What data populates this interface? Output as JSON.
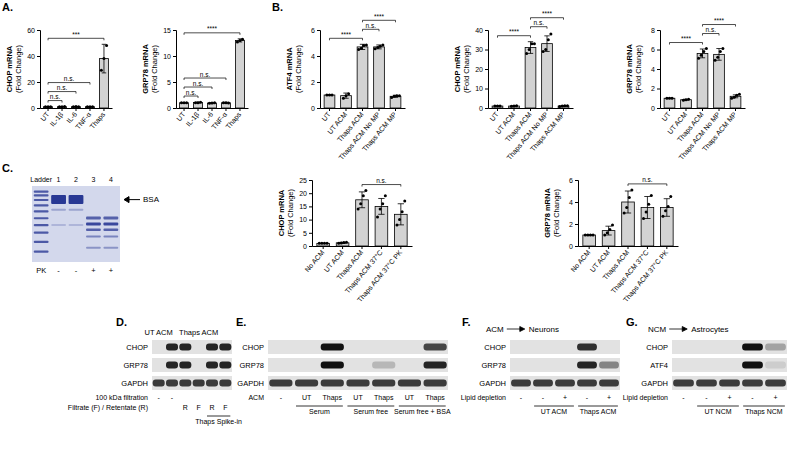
{
  "panel_labels": [
    "A.",
    "B.",
    "C.",
    "D.",
    "E.",
    "F.",
    "G."
  ],
  "chart_data": [
    {
      "type": "bar",
      "ylabel": "CHOP mRNA",
      "ylabel_unit": "(Fold Change)",
      "categories": [
        "UT",
        "IL-1β",
        "IL-6",
        "TNF-α",
        "Thaps"
      ],
      "values": [
        1,
        1,
        1,
        1,
        38
      ],
      "errors": [
        0.1,
        0.1,
        0.1,
        0.1,
        11
      ],
      "points": [
        [
          1,
          1,
          1
        ],
        [
          0.9,
          1,
          1.1
        ],
        [
          1,
          1.1,
          0.9
        ],
        [
          1,
          0.9,
          1
        ],
        [
          29,
          38,
          48
        ]
      ],
      "color": "#d3d3d3",
      "ylim": [
        0,
        60
      ],
      "yticks": [
        0,
        20,
        40,
        60
      ],
      "comparisons": [
        {
          "from": 0,
          "to": 1,
          "label": "n.s."
        },
        {
          "from": 0,
          "to": 2,
          "label": "n.s."
        },
        {
          "from": 0,
          "to": 3,
          "label": "n.s."
        },
        {
          "from": 0,
          "to": 4,
          "label": "***"
        }
      ]
    },
    {
      "type": "bar",
      "ylabel": "GRP78 mRNA",
      "ylabel_unit": "(Fold Change)",
      "categories": [
        "UT",
        "IL-1β",
        "IL-6",
        "TNF-α",
        "Thaps"
      ],
      "values": [
        1,
        1.05,
        0.95,
        1,
        13
      ],
      "errors": [
        0.05,
        0.1,
        0.1,
        0.1,
        0.3
      ],
      "points": [
        [
          1,
          1,
          1
        ],
        [
          1,
          1,
          1.1
        ],
        [
          0.9,
          0.95,
          1
        ],
        [
          1,
          1,
          0.95
        ],
        [
          12.7,
          13,
          13.2
        ]
      ],
      "color": "#d3d3d3",
      "ylim": [
        0,
        15
      ],
      "yticks": [
        0,
        5,
        10,
        15
      ],
      "comparisons": [
        {
          "from": 0,
          "to": 1,
          "label": "n.s."
        },
        {
          "from": 0,
          "to": 2,
          "label": "n.s."
        },
        {
          "from": 0,
          "to": 3,
          "label": "n.s."
        },
        {
          "from": 0,
          "to": 4,
          "label": "****"
        }
      ]
    },
    {
      "type": "bar",
      "ylabel": "ATF4 mRNA",
      "ylabel_unit": "(Fold Change)",
      "categories": [
        "UT",
        "UT ACM",
        "Thaps ACM",
        "Thaps ACM No MP",
        "Thaps ACM MP"
      ],
      "values": [
        1,
        0.95,
        4.7,
        4.7,
        0.9
      ],
      "errors": [
        0.02,
        0.2,
        0.2,
        0.15,
        0.08
      ],
      "points": [
        [
          1,
          1,
          1
        ],
        [
          0.75,
          0.95,
          1.1
        ],
        [
          4.5,
          4.6,
          4.8,
          4.85
        ],
        [
          4.55,
          4.65,
          4.75,
          4.85
        ],
        [
          0.8,
          0.9,
          0.95,
          0.95
        ]
      ],
      "color": "#d3d3d3",
      "ylim": [
        0,
        6
      ],
      "yticks": [
        0,
        2,
        4,
        6
      ],
      "comparisons": [
        {
          "from": 0,
          "to": 2,
          "label": "****"
        },
        {
          "from": 2,
          "to": 3,
          "label": "n.s."
        },
        {
          "from": 2,
          "to": 4,
          "label": "****"
        }
      ]
    },
    {
      "type": "bar",
      "ylabel": "CHOP mRNA",
      "ylabel_unit": "(Fold Change)",
      "categories": [
        "UT",
        "UT ACM",
        "Thaps ACM",
        "Thaps ACM No MP",
        "Thaps ACM MP"
      ],
      "values": [
        1,
        1,
        31,
        33,
        1
      ],
      "errors": [
        0.05,
        0.1,
        3,
        4,
        0.2
      ],
      "points": [
        [
          1,
          1,
          1
        ],
        [
          0.9,
          1,
          1.1
        ],
        [
          28,
          30,
          33,
          33
        ],
        [
          29,
          30,
          35,
          38
        ],
        [
          0.8,
          1,
          1.1,
          1.1
        ]
      ],
      "color": "#d3d3d3",
      "ylim": [
        0,
        40
      ],
      "yticks": [
        0,
        10,
        20,
        30,
        40
      ],
      "comparisons": [
        {
          "from": 0,
          "to": 2,
          "label": "****"
        },
        {
          "from": 2,
          "to": 3,
          "label": "n.s."
        },
        {
          "from": 2,
          "to": 4,
          "label": "****"
        }
      ]
    },
    {
      "type": "bar",
      "ylabel": "GRP78 mRNA",
      "ylabel_unit": "(Fold Change)",
      "categories": [
        "UT",
        "UT ACM",
        "Thaps ACM",
        "Thaps ACM No MP",
        "Thaps ACM MP"
      ],
      "values": [
        1,
        0.85,
        5.6,
        5.5,
        1.2
      ],
      "errors": [
        0.02,
        0.05,
        0.45,
        0.6,
        0.15
      ],
      "points": [
        [
          1,
          1,
          1
        ],
        [
          0.8,
          0.85,
          0.9
        ],
        [
          5.1,
          5.4,
          5.8,
          6.1
        ],
        [
          4.9,
          5.2,
          5.8,
          6.1
        ],
        [
          1,
          1.1,
          1.3,
          1.4
        ]
      ],
      "color": "#d3d3d3",
      "ylim": [
        0,
        8
      ],
      "yticks": [
        0,
        2,
        4,
        6,
        8
      ],
      "comparisons": [
        {
          "from": 0,
          "to": 2,
          "label": "****"
        },
        {
          "from": 2,
          "to": 3,
          "label": "n.s."
        },
        {
          "from": 2,
          "to": 4,
          "label": "****"
        }
      ]
    },
    {
      "type": "bar",
      "ylabel": "CHOP mRNA",
      "ylabel_unit": "(Fold Change)",
      "categories": [
        "No ACM",
        "UT ACM",
        "Thaps ACM",
        "Thaps ACM 37°C",
        "Thaps ACM 37°C PK"
      ],
      "values": [
        1,
        1.2,
        17.5,
        15,
        12
      ],
      "errors": [
        0.01,
        0.2,
        3,
        3,
        4
      ],
      "points": [
        [
          1,
          1,
          1,
          1
        ],
        [
          1,
          1.1,
          1.3,
          1.4
        ],
        [
          14,
          16,
          19,
          21
        ],
        [
          11,
          14,
          16,
          19
        ],
        [
          8,
          10,
          13,
          17
        ]
      ],
      "color": "#d3d3d3",
      "ylim": [
        0,
        25
      ],
      "yticks": [
        0,
        5,
        10,
        15,
        20,
        25
      ],
      "comparisons": [
        {
          "from": 2,
          "to": 4,
          "label": "n.s."
        }
      ]
    },
    {
      "type": "bar",
      "ylabel": "GRP78 mRNA",
      "ylabel_unit": "(Fold Change)",
      "categories": [
        "No ACM",
        "UT ACM",
        "Thaps ACM",
        "Thaps ACM 37°C",
        "Thaps ACM 37°C PK"
      ],
      "values": [
        1,
        1.4,
        4,
        3.5,
        3.5
      ],
      "errors": [
        0.01,
        0.4,
        1,
        1,
        0.8
      ],
      "points": [
        [
          1,
          1,
          1,
          1
        ],
        [
          1,
          1.2,
          1.5,
          1.9
        ],
        [
          3,
          3.5,
          4.4,
          5.1
        ],
        [
          2.5,
          3.1,
          3.8,
          4.6
        ],
        [
          2.7,
          3.2,
          3.6,
          4.5
        ]
      ],
      "color": "#d3d3d3",
      "ylim": [
        0,
        6
      ],
      "yticks": [
        0,
        2,
        4,
        6
      ],
      "comparisons": [
        {
          "from": 2,
          "to": 4,
          "label": "n.s."
        }
      ]
    }
  ],
  "gel": {
    "lane_labels": [
      "Ladder",
      "1",
      "2",
      "3",
      "4"
    ],
    "row": [
      "PK",
      "-",
      "-",
      "+",
      "+"
    ],
    "arrow_label": "BSA"
  },
  "blots": [
    {
      "headers": [
        {
          "label": "UT ACM",
          "from": 0,
          "to": 0
        },
        {
          "label": "Thaps ACM",
          "from": 1,
          "to": 5
        }
      ],
      "rows": [
        {
          "name": "CHOP",
          "bands": [
            0,
            0.9,
            0.9,
            0,
            0.9,
            0.9
          ]
        },
        {
          "name": "GRP78",
          "bands": [
            0,
            0.9,
            0.9,
            0,
            0.9,
            0.9
          ]
        },
        {
          "name": "GAPDH",
          "bands": [
            0.8,
            0.8,
            0.8,
            0.8,
            0.8,
            0.8
          ]
        }
      ],
      "lane_rows": [
        {
          "label": "100 kDa filtration",
          "lanes": [
            "-",
            "-",
            null,
            null,
            null,
            null
          ]
        },
        {
          "label": "Filtrate (F) / Retentate (R)",
          "lanes": [
            null,
            null,
            "R",
            "F",
            "R",
            "F"
          ]
        }
      ],
      "groups": [
        {
          "label": "Thaps Spike-in",
          "from": 4,
          "to": 5
        }
      ]
    },
    {
      "rows": [
        {
          "name": "CHOP",
          "bands": [
            0,
            0,
            1,
            0,
            0,
            0,
            0.75
          ]
        },
        {
          "name": "GRP78",
          "bands": [
            0,
            0,
            1,
            0,
            0.2,
            0,
            0.9
          ]
        },
        {
          "name": "GAPDH",
          "bands": [
            0.8,
            0.8,
            0.8,
            0.8,
            0.8,
            0.8,
            0.8
          ]
        }
      ],
      "lane_rows": [
        {
          "label": "ACM",
          "lanes": [
            "-",
            "UT",
            "Thaps",
            "UT",
            "Thaps",
            "UT",
            "Thaps"
          ]
        }
      ],
      "groups": [
        {
          "label": "Serum",
          "from": 1,
          "to": 2
        },
        {
          "label": "Serum free",
          "from": 3,
          "to": 4
        },
        {
          "label": "Serum free + BSA",
          "from": 5,
          "to": 6
        }
      ]
    },
    {
      "title": {
        "from": "ACM",
        "to": "Neurons"
      },
      "rows": [
        {
          "name": "CHOP",
          "bands": [
            0,
            0,
            0,
            0.85,
            0
          ]
        },
        {
          "name": "GRP78",
          "bands": [
            0,
            0,
            0,
            0.9,
            0.45
          ]
        },
        {
          "name": "GAPDH",
          "bands": [
            0.8,
            0.8,
            0.8,
            0.8,
            0.8
          ]
        }
      ],
      "lane_rows": [
        {
          "label": "Lipid depletion",
          "lanes": [
            "-",
            "-",
            "+",
            "-",
            "+"
          ]
        }
      ],
      "groups": [
        {
          "label": "UT ACM",
          "from": 1,
          "to": 2
        },
        {
          "label": "Thaps ACM",
          "from": 3,
          "to": 4
        }
      ]
    },
    {
      "title": {
        "from": "NCM",
        "to": "Astrocytes"
      },
      "rows": [
        {
          "name": "CHOP",
          "bands": [
            0,
            0,
            0,
            1,
            0.3
          ]
        },
        {
          "name": "ATF4",
          "bands": [
            0,
            0,
            0,
            1,
            0.1
          ]
        },
        {
          "name": "GAPDH",
          "bands": [
            0.8,
            0.8,
            0.8,
            0.8,
            0.8
          ]
        }
      ],
      "lane_rows": [
        {
          "label": "Lipid depletion",
          "lanes": [
            "-",
            "-",
            "+",
            "-",
            "+"
          ]
        }
      ],
      "groups": [
        {
          "label": "UT NCM",
          "from": 1,
          "to": 2
        },
        {
          "label": "Thaps NCM",
          "from": 3,
          "to": 4
        }
      ]
    }
  ]
}
